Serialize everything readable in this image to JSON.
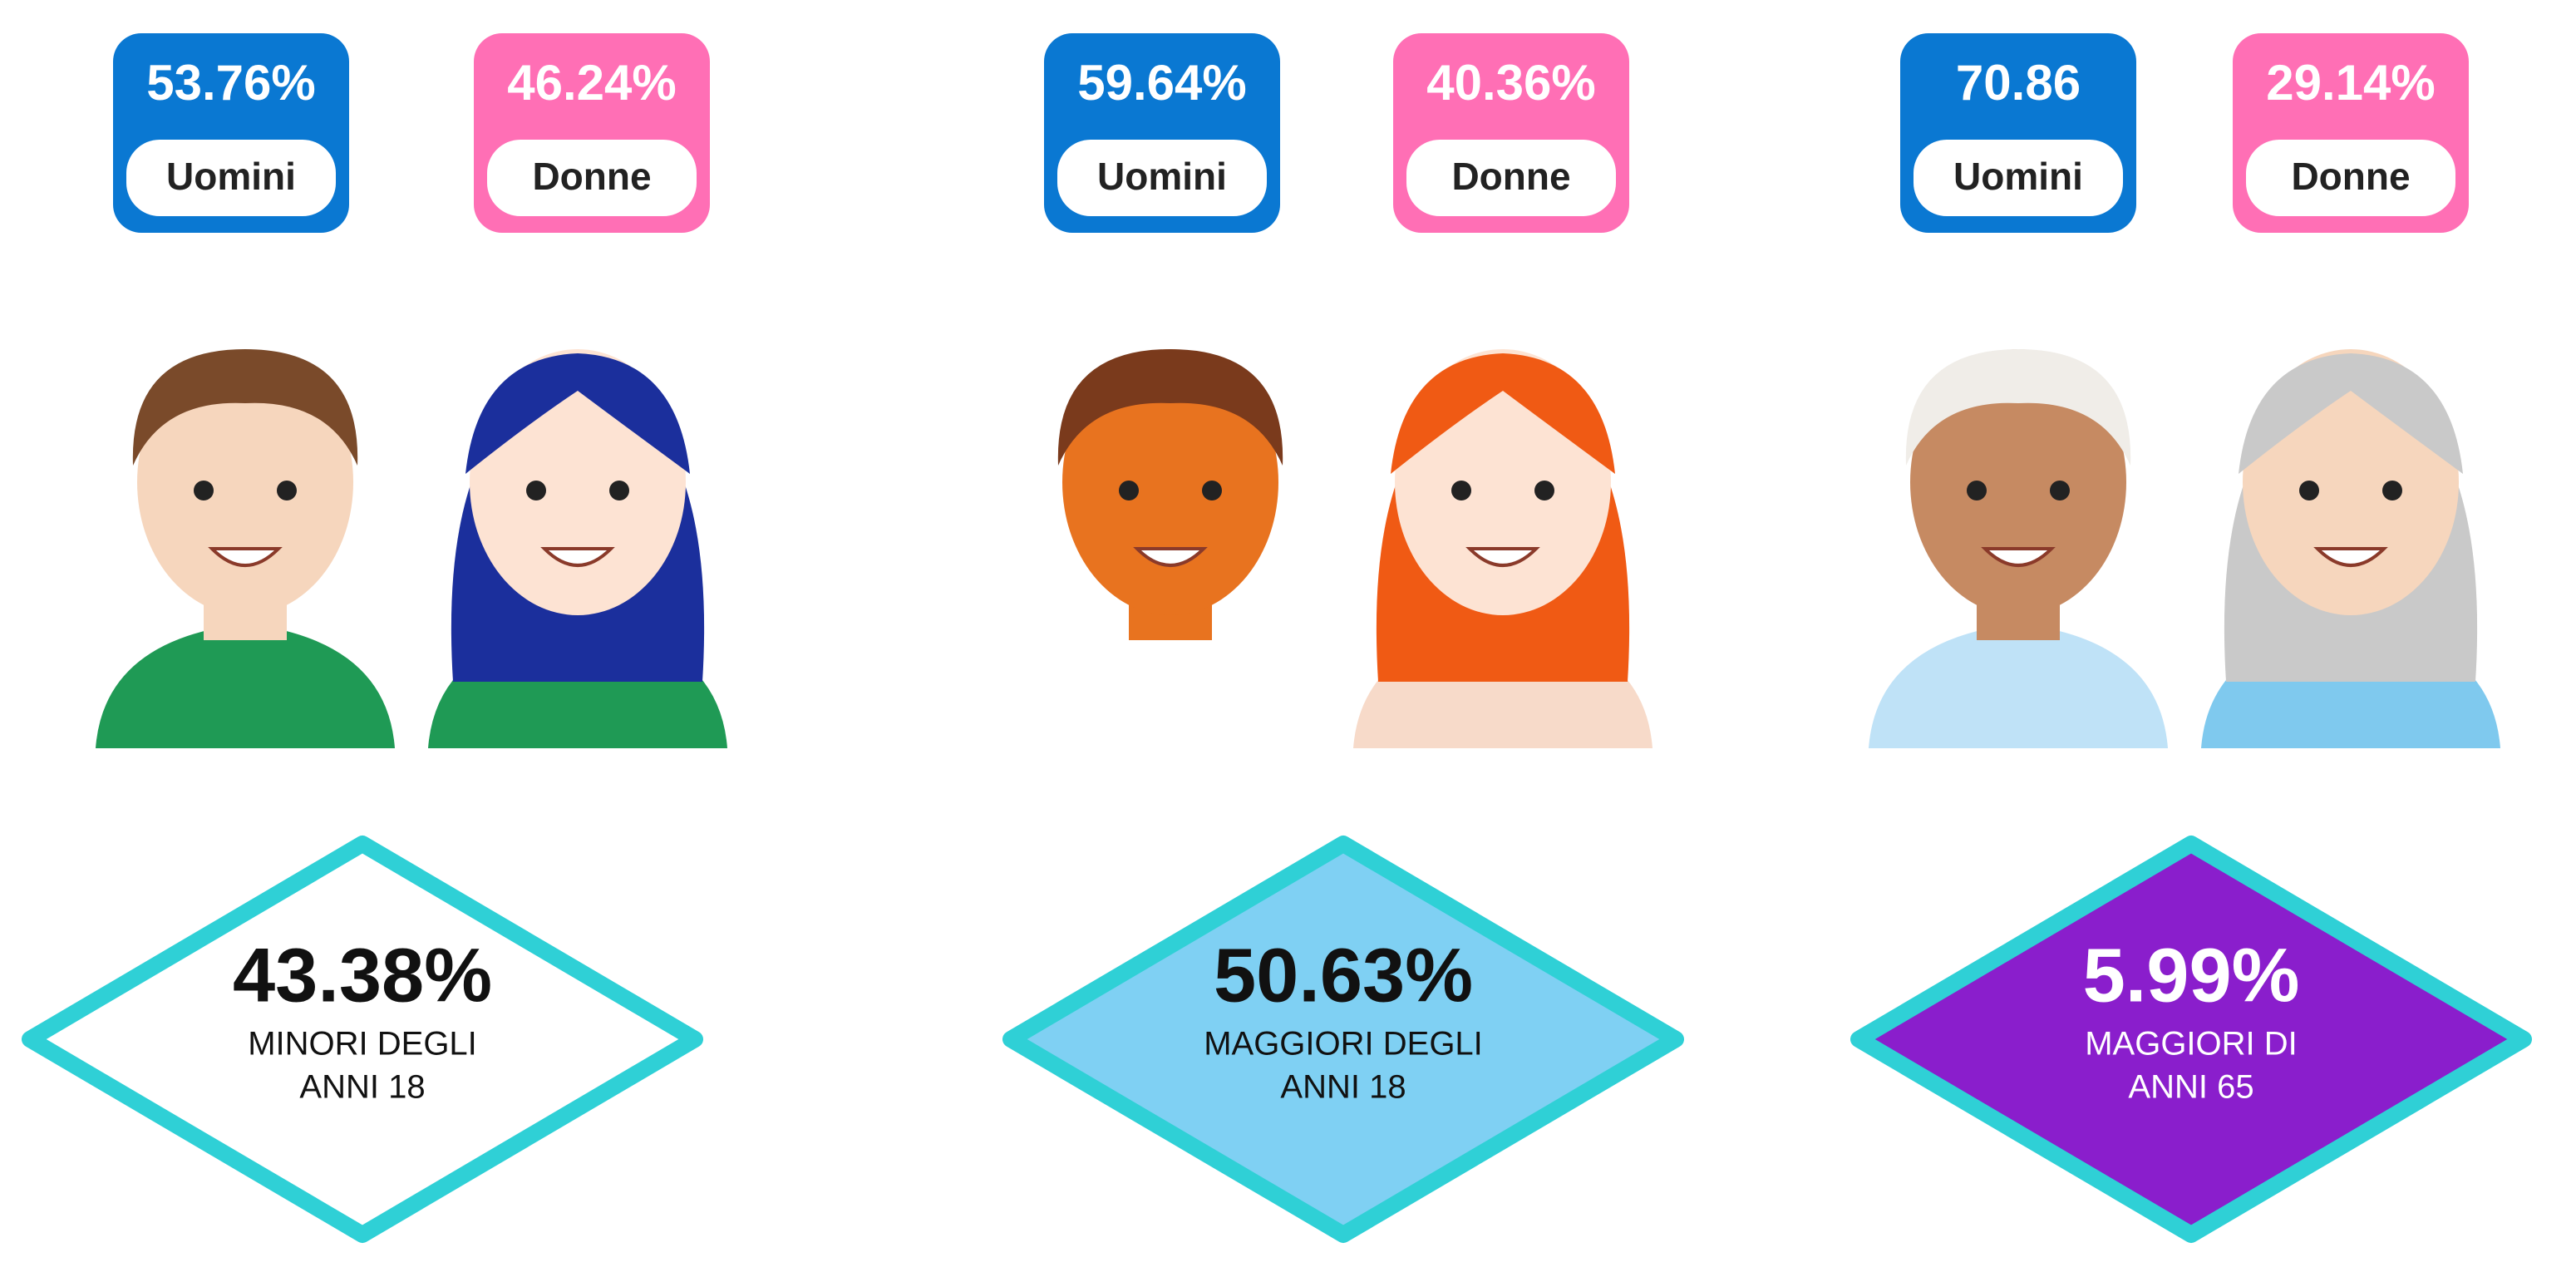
{
  "groups": [
    {
      "men": {
        "value": "53.76%",
        "label": "Uomini"
      },
      "women": {
        "value": "46.24%",
        "label": "Donne"
      },
      "total": "43.38%",
      "description": [
        "MINORI DEGLI",
        "ANNI 18"
      ]
    },
    {
      "men": {
        "value": "59.64%",
        "label": "Uomini"
      },
      "women": {
        "value": "40.36%",
        "label": "Donne"
      },
      "total": "50.63%",
      "description": [
        "MAGGIORI DEGLI",
        "ANNI 18"
      ]
    },
    {
      "men": {
        "value": "70.86",
        "label": "Uomini"
      },
      "women": {
        "value": "29.14%",
        "label": "Donne"
      },
      "total": "5.99%",
      "description": [
        "MAGGIORI DI",
        "ANNI 65"
      ]
    }
  ]
}
